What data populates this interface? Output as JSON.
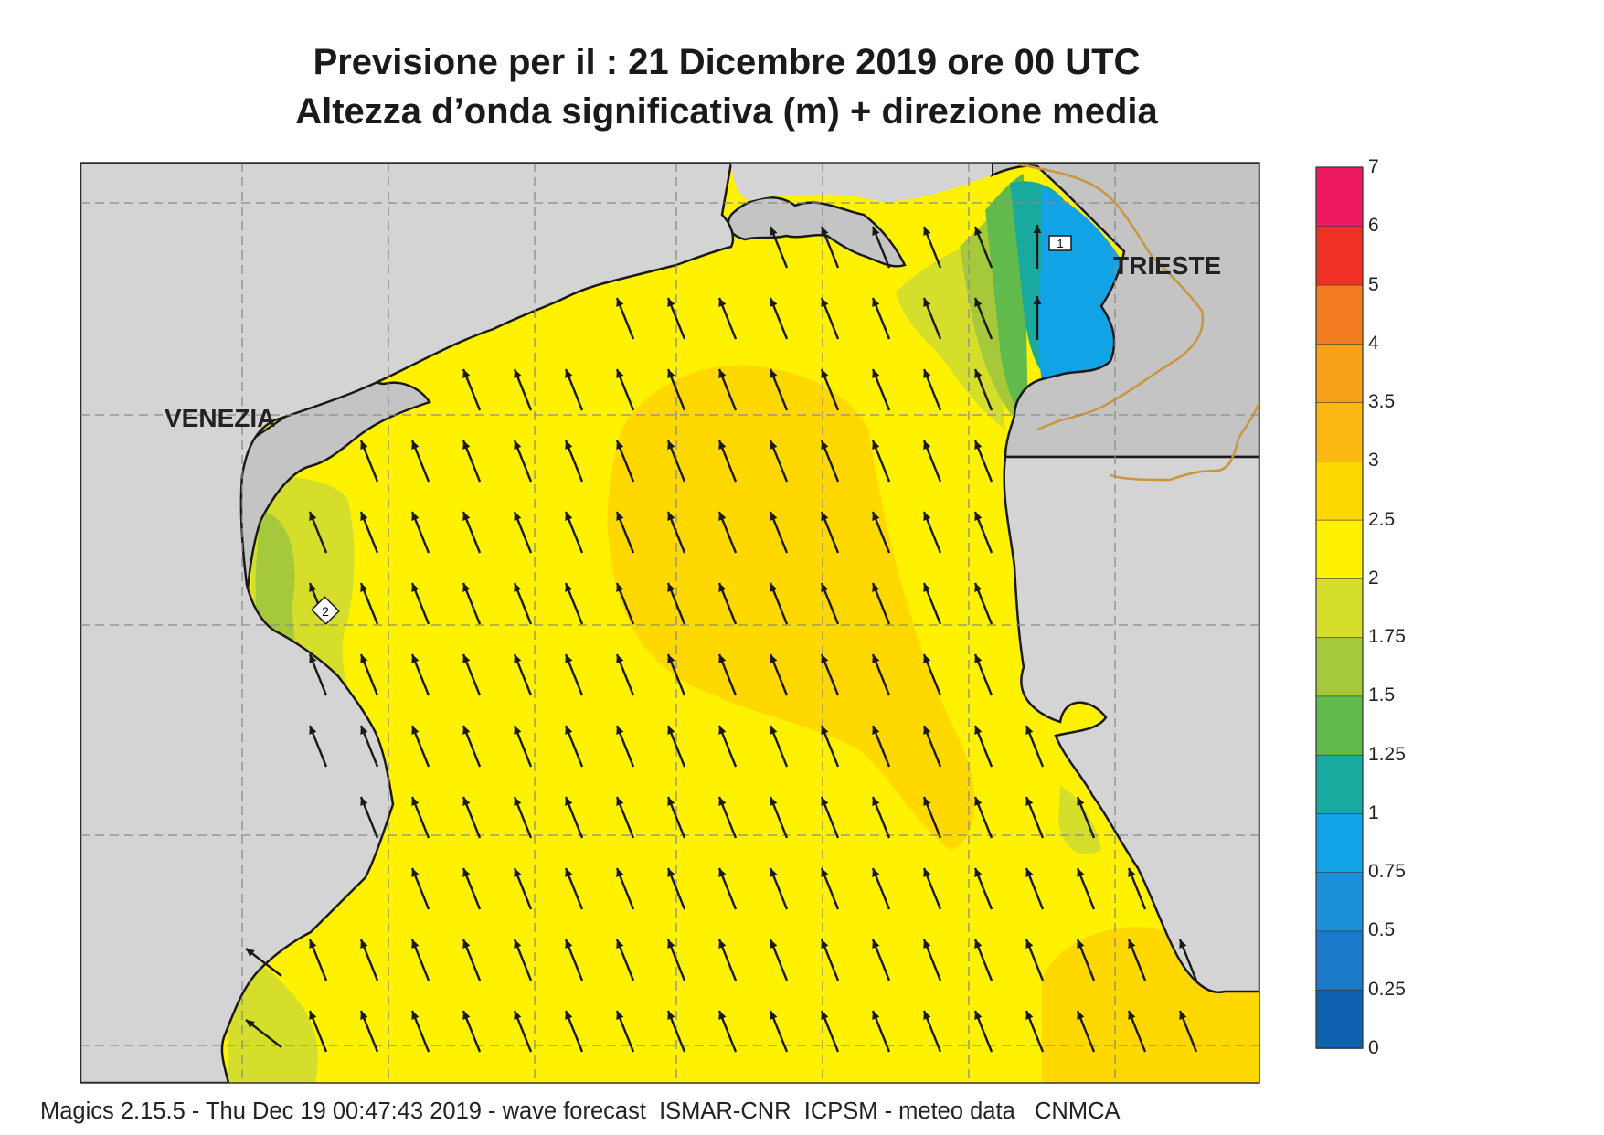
{
  "header": {
    "title_line1": "Previsione per il  :  21 Dicembre  2019   ore 00 UTC",
    "title_line2": "Altezza d’onda significativa (m) + direzione media"
  },
  "map": {
    "cities": [
      "VENEZIA",
      "TRIESTE"
    ],
    "contour_labels": [
      "1",
      "2"
    ],
    "land_color": "#d4d4d4",
    "coast_color": "#1a1a1a",
    "border_color": "#c8963c",
    "grid_color": "#8a8a8a",
    "arrow_color": "#1a1a1a",
    "mean_direction": "north-west"
  },
  "colorbar": {
    "labels": [
      "7",
      "6",
      "5",
      "4",
      "3.5",
      "3",
      "2.5",
      "2",
      "1.75",
      "1.5",
      "1.25",
      "1",
      "0.75",
      "0.5",
      "0.25",
      "0"
    ],
    "colors": [
      "#0f62b0",
      "#1a79c9",
      "#1b8fd8",
      "#12a3e6",
      "#1aa99f",
      "#60ba4c",
      "#a5c93a",
      "#d5de2b",
      "#fff200",
      "#ffd800",
      "#fdb813",
      "#f9a01b",
      "#f47c20",
      "#ee3124",
      "#ed1a62"
    ]
  },
  "footer": {
    "text": "Magics 2.15.5 - Thu Dec 19 00:47:43 2019 - wave forecast  ISMAR-CNR  ICPSM - meteo data   CNMCA"
  }
}
